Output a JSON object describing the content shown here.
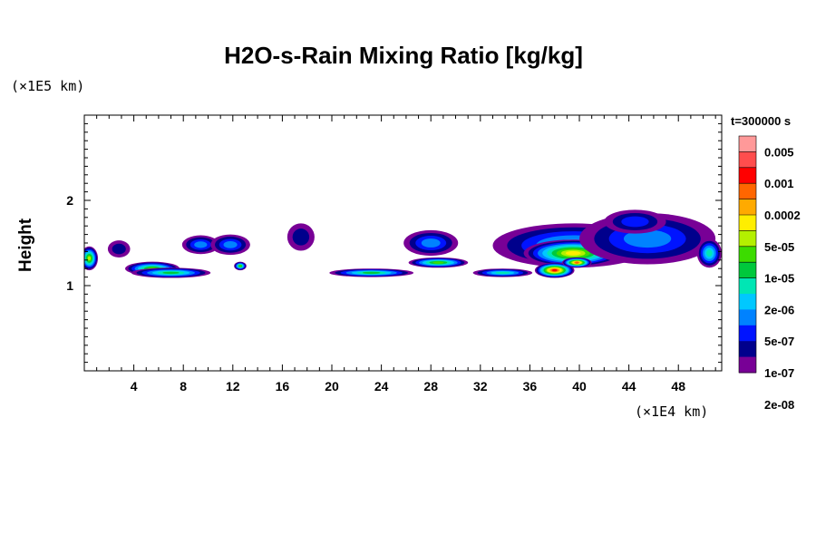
{
  "chart_data": {
    "type": "heatmap",
    "title": "H2O-s-Rain Mixing Ratio [kg/kg]",
    "xlabel": "",
    "ylabel": "Height",
    "x_unit": "(×1E4 km)",
    "y_unit": "(×1E5 km)",
    "time_label": "t=300000 s",
    "xlim": [
      0,
      51.5
    ],
    "ylim": [
      0,
      3.0
    ],
    "x_ticks": [
      4,
      8,
      12,
      16,
      20,
      24,
      28,
      32,
      36,
      40,
      44,
      48
    ],
    "y_ticks": [
      1,
      2
    ],
    "legend": {
      "labels": [
        "0.005",
        "0.001",
        "0.0002",
        "5e-05",
        "1e-05",
        "2e-06",
        "5e-07",
        "1e-07",
        "2e-08"
      ],
      "colors": [
        "#ff9999",
        "#ff4d4d",
        "#ff0000",
        "#ff6600",
        "#ffaa00",
        "#ffee00",
        "#b4f000",
        "#3cdc00",
        "#00c83c",
        "#00e6b4",
        "#00c8ff",
        "#0082ff",
        "#0014ff",
        "#00008c",
        "#780096"
      ]
    },
    "features": [
      {
        "x": 0.4,
        "y": 1.32,
        "rx": 0.7,
        "ry": 0.14,
        "level": 8
      },
      {
        "x": 2.8,
        "y": 1.43,
        "rx": 0.9,
        "ry": 0.1,
        "level": 1
      },
      {
        "x": 5.5,
        "y": 1.2,
        "rx": 2.2,
        "ry": 0.08,
        "level": 7
      },
      {
        "x": 7.0,
        "y": 1.15,
        "rx": 3.2,
        "ry": 0.06,
        "level": 6
      },
      {
        "x": 9.4,
        "y": 1.48,
        "rx": 1.5,
        "ry": 0.11,
        "level": 3
      },
      {
        "x": 11.8,
        "y": 1.48,
        "rx": 1.6,
        "ry": 0.12,
        "level": 3
      },
      {
        "x": 12.6,
        "y": 1.23,
        "rx": 0.5,
        "ry": 0.05,
        "level": 7
      },
      {
        "x": 17.5,
        "y": 1.57,
        "rx": 1.1,
        "ry": 0.16,
        "level": 1
      },
      {
        "x": 23.2,
        "y": 1.15,
        "rx": 3.4,
        "ry": 0.05,
        "level": 6
      },
      {
        "x": 28.0,
        "y": 1.5,
        "rx": 2.2,
        "ry": 0.15,
        "level": 3
      },
      {
        "x": 28.6,
        "y": 1.27,
        "rx": 2.4,
        "ry": 0.06,
        "level": 7
      },
      {
        "x": 33.8,
        "y": 1.15,
        "rx": 2.4,
        "ry": 0.05,
        "level": 5
      },
      {
        "x": 39.5,
        "y": 1.47,
        "rx": 6.5,
        "ry": 0.26,
        "level": 4
      },
      {
        "x": 39.5,
        "y": 1.38,
        "rx": 4.0,
        "ry": 0.16,
        "level": 9
      },
      {
        "x": 38.0,
        "y": 1.18,
        "rx": 1.6,
        "ry": 0.09,
        "level": 12
      },
      {
        "x": 39.8,
        "y": 1.27,
        "rx": 1.2,
        "ry": 0.06,
        "level": 11
      },
      {
        "x": 45.5,
        "y": 1.55,
        "rx": 5.5,
        "ry": 0.3,
        "level": 3
      },
      {
        "x": 44.5,
        "y": 1.75,
        "rx": 2.5,
        "ry": 0.14,
        "level": 2
      },
      {
        "x": 50.5,
        "y": 1.38,
        "rx": 1.0,
        "ry": 0.17,
        "level": 5
      }
    ]
  }
}
